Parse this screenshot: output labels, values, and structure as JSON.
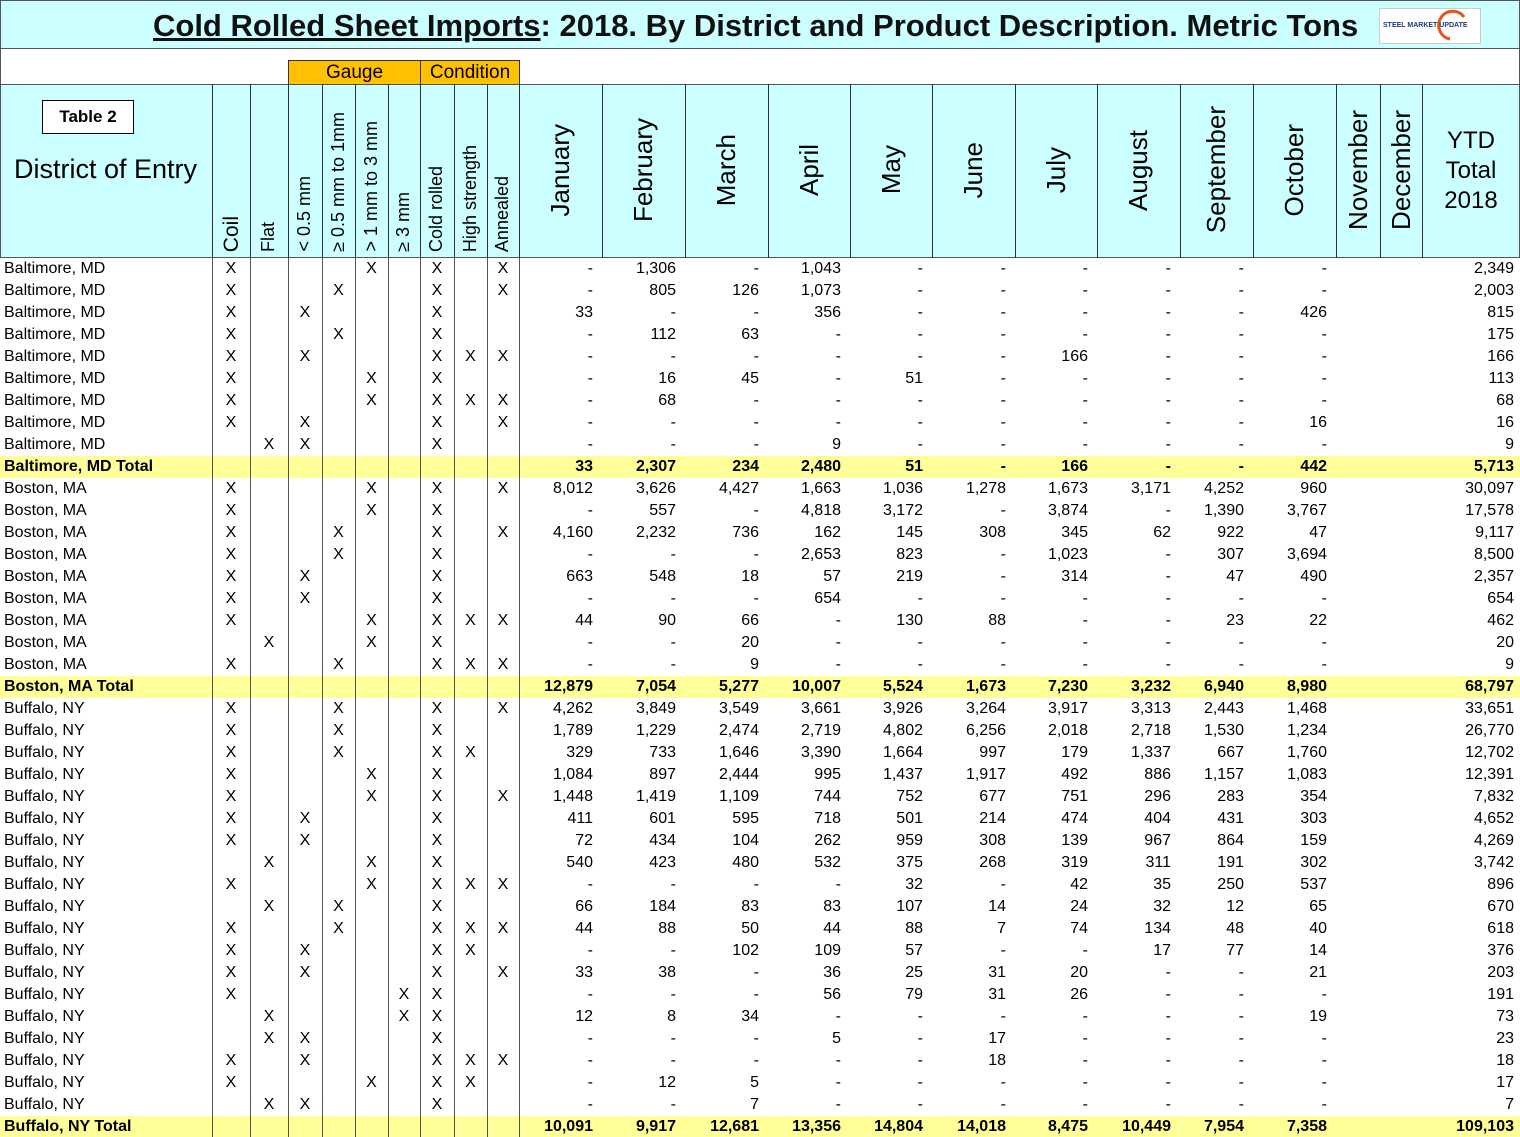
{
  "title": {
    "main": "Cold Rolled Sheet Imports",
    "rest": ": 2018. By District and Product Description. Metric Tons",
    "logo": "STEEL MARKET UPDATE"
  },
  "groups": {
    "gauge": "Gauge",
    "condition": "Condition"
  },
  "header": {
    "table_label": "Table 2",
    "district": "District of Entry",
    "attributes": [
      "Coil",
      "Flat",
      "< 0.5 mm",
      "≥ 0.5 mm to 1mm",
      "> 1 mm to 3 mm",
      "≥ 3 mm",
      "Cold rolled",
      "High strength",
      "Annealed"
    ],
    "months": [
      "January",
      "February",
      "March",
      "April",
      "May",
      "June",
      "July",
      "August",
      "September",
      "October",
      "November",
      "December"
    ],
    "ytd": [
      "YTD",
      "Total",
      "2018"
    ]
  },
  "rows": [
    {
      "district": "Baltimore, MD",
      "marks": [
        "X",
        null,
        null,
        null,
        "X",
        null,
        "X",
        null,
        "X"
      ],
      "values": [
        "-",
        "1,306",
        "-",
        "1,043",
        "-",
        "-",
        "-",
        "-",
        "-",
        "-"
      ],
      "ytd": "2,349"
    },
    {
      "district": "Baltimore, MD",
      "marks": [
        "X",
        null,
        null,
        "X",
        null,
        null,
        "X",
        null,
        "X"
      ],
      "values": [
        "-",
        "805",
        "126",
        "1,073",
        "-",
        "-",
        "-",
        "-",
        "-",
        "-"
      ],
      "ytd": "2,003"
    },
    {
      "district": "Baltimore, MD",
      "marks": [
        "X",
        null,
        "X",
        null,
        null,
        null,
        "X",
        null,
        null
      ],
      "values": [
        "33",
        "-",
        "-",
        "356",
        "-",
        "-",
        "-",
        "-",
        "-",
        "426"
      ],
      "ytd": "815"
    },
    {
      "district": "Baltimore, MD",
      "marks": [
        "X",
        null,
        null,
        "X",
        null,
        null,
        "X",
        null,
        null
      ],
      "values": [
        "-",
        "112",
        "63",
        "-",
        "-",
        "-",
        "-",
        "-",
        "-",
        "-"
      ],
      "ytd": "175"
    },
    {
      "district": "Baltimore, MD",
      "marks": [
        "X",
        null,
        "X",
        null,
        null,
        null,
        "X",
        "X",
        "X"
      ],
      "values": [
        "-",
        "-",
        "-",
        "-",
        "-",
        "-",
        "166",
        "-",
        "-",
        "-"
      ],
      "ytd": "166"
    },
    {
      "district": "Baltimore, MD",
      "marks": [
        "X",
        null,
        null,
        null,
        "X",
        null,
        "X",
        null,
        null
      ],
      "values": [
        "-",
        "16",
        "45",
        "-",
        "51",
        "-",
        "-",
        "-",
        "-",
        "-"
      ],
      "ytd": "113"
    },
    {
      "district": "Baltimore, MD",
      "marks": [
        "X",
        null,
        null,
        null,
        "X",
        null,
        "X",
        "X",
        "X"
      ],
      "values": [
        "-",
        "68",
        "-",
        "-",
        "-",
        "-",
        "-",
        "-",
        "-",
        "-"
      ],
      "ytd": "68"
    },
    {
      "district": "Baltimore, MD",
      "marks": [
        "X",
        null,
        "X",
        null,
        null,
        null,
        "X",
        null,
        "X"
      ],
      "values": [
        "-",
        "-",
        "-",
        "-",
        "-",
        "-",
        "-",
        "-",
        "-",
        "16"
      ],
      "ytd": "16"
    },
    {
      "district": "Baltimore, MD",
      "marks": [
        null,
        "X",
        "X",
        null,
        null,
        null,
        "X",
        null,
        null
      ],
      "values": [
        "-",
        "-",
        "-",
        "9",
        "-",
        "-",
        "-",
        "-",
        "-",
        "-"
      ],
      "ytd": "9"
    },
    {
      "district": "Baltimore, MD Total",
      "values": [
        "33",
        "2,307",
        "234",
        "2,480",
        "51",
        "-",
        "166",
        "-",
        "-",
        "442"
      ],
      "ytd": "5,713"
    },
    {
      "district": "Boston, MA",
      "marks": [
        "X",
        null,
        null,
        null,
        "X",
        null,
        "X",
        null,
        "X"
      ],
      "values": [
        "8,012",
        "3,626",
        "4,427",
        "1,663",
        "1,036",
        "1,278",
        "1,673",
        "3,171",
        "4,252",
        "960"
      ],
      "ytd": "30,097"
    },
    {
      "district": "Boston, MA",
      "marks": [
        "X",
        null,
        null,
        null,
        "X",
        null,
        "X",
        null,
        null
      ],
      "values": [
        "-",
        "557",
        "-",
        "4,818",
        "3,172",
        "-",
        "3,874",
        "-",
        "1,390",
        "3,767"
      ],
      "ytd": "17,578"
    },
    {
      "district": "Boston, MA",
      "marks": [
        "X",
        null,
        null,
        "X",
        null,
        null,
        "X",
        null,
        "X"
      ],
      "values": [
        "4,160",
        "2,232",
        "736",
        "162",
        "145",
        "308",
        "345",
        "62",
        "922",
        "47"
      ],
      "ytd": "9,117"
    },
    {
      "district": "Boston, MA",
      "marks": [
        "X",
        null,
        null,
        "X",
        null,
        null,
        "X",
        null,
        null
      ],
      "values": [
        "-",
        "-",
        "-",
        "2,653",
        "823",
        "-",
        "1,023",
        "-",
        "307",
        "3,694"
      ],
      "ytd": "8,500"
    },
    {
      "district": "Boston, MA",
      "marks": [
        "X",
        null,
        "X",
        null,
        null,
        null,
        "X",
        null,
        null
      ],
      "values": [
        "663",
        "548",
        "18",
        "57",
        "219",
        "-",
        "314",
        "-",
        "47",
        "490"
      ],
      "ytd": "2,357"
    },
    {
      "district": "Boston, MA",
      "marks": [
        "X",
        null,
        "X",
        null,
        null,
        null,
        "X",
        null,
        null
      ],
      "values": [
        "-",
        "-",
        "-",
        "654",
        "-",
        "-",
        "-",
        "-",
        "-",
        "-"
      ],
      "ytd": "654"
    },
    {
      "district": "Boston, MA",
      "marks": [
        "X",
        null,
        null,
        null,
        "X",
        null,
        "X",
        "X",
        "X"
      ],
      "values": [
        "44",
        "90",
        "66",
        "-",
        "130",
        "88",
        "-",
        "-",
        "23",
        "22"
      ],
      "ytd": "462"
    },
    {
      "district": "Boston, MA",
      "marks": [
        null,
        "X",
        null,
        null,
        "X",
        null,
        "X",
        null,
        null
      ],
      "values": [
        "-",
        "-",
        "20",
        "-",
        "-",
        "-",
        "-",
        "-",
        "-",
        "-"
      ],
      "ytd": "20"
    },
    {
      "district": "Boston, MA",
      "marks": [
        "X",
        null,
        null,
        "X",
        null,
        null,
        "X",
        "X",
        "X"
      ],
      "values": [
        "-",
        "-",
        "9",
        "-",
        "-",
        "-",
        "-",
        "-",
        "-",
        "-"
      ],
      "ytd": "9"
    },
    {
      "district": "Boston, MA Total",
      "values": [
        "12,879",
        "7,054",
        "5,277",
        "10,007",
        "5,524",
        "1,673",
        "7,230",
        "3,232",
        "6,940",
        "8,980"
      ],
      "ytd": "68,797"
    },
    {
      "district": "Buffalo, NY",
      "marks": [
        "X",
        null,
        null,
        "X",
        null,
        null,
        "X",
        null,
        "X"
      ],
      "values": [
        "4,262",
        "3,849",
        "3,549",
        "3,661",
        "3,926",
        "3,264",
        "3,917",
        "3,313",
        "2,443",
        "1,468"
      ],
      "ytd": "33,651"
    },
    {
      "district": "Buffalo, NY",
      "marks": [
        "X",
        null,
        null,
        "X",
        null,
        null,
        "X",
        null,
        null
      ],
      "values": [
        "1,789",
        "1,229",
        "2,474",
        "2,719",
        "4,802",
        "6,256",
        "2,018",
        "2,718",
        "1,530",
        "1,234"
      ],
      "ytd": "26,770"
    },
    {
      "district": "Buffalo, NY",
      "marks": [
        "X",
        null,
        null,
        "X",
        null,
        null,
        "X",
        "X",
        null
      ],
      "values": [
        "329",
        "733",
        "1,646",
        "3,390",
        "1,664",
        "997",
        "179",
        "1,337",
        "667",
        "1,760"
      ],
      "ytd": "12,702"
    },
    {
      "district": "Buffalo, NY",
      "marks": [
        "X",
        null,
        null,
        null,
        "X",
        null,
        "X",
        null,
        null
      ],
      "values": [
        "1,084",
        "897",
        "2,444",
        "995",
        "1,437",
        "1,917",
        "492",
        "886",
        "1,157",
        "1,083"
      ],
      "ytd": "12,391"
    },
    {
      "district": "Buffalo, NY",
      "marks": [
        "X",
        null,
        null,
        null,
        "X",
        null,
        "X",
        null,
        "X"
      ],
      "values": [
        "1,448",
        "1,419",
        "1,109",
        "744",
        "752",
        "677",
        "751",
        "296",
        "283",
        "354"
      ],
      "ytd": "7,832"
    },
    {
      "district": "Buffalo, NY",
      "marks": [
        "X",
        null,
        "X",
        null,
        null,
        null,
        "X",
        null,
        null
      ],
      "values": [
        "411",
        "601",
        "595",
        "718",
        "501",
        "214",
        "474",
        "404",
        "431",
        "303"
      ],
      "ytd": "4,652"
    },
    {
      "district": "Buffalo, NY",
      "marks": [
        "X",
        null,
        "X",
        null,
        null,
        null,
        "X",
        null,
        null
      ],
      "values": [
        "72",
        "434",
        "104",
        "262",
        "959",
        "308",
        "139",
        "967",
        "864",
        "159"
      ],
      "ytd": "4,269"
    },
    {
      "district": "Buffalo, NY",
      "marks": [
        null,
        "X",
        null,
        null,
        "X",
        null,
        "X",
        null,
        null
      ],
      "values": [
        "540",
        "423",
        "480",
        "532",
        "375",
        "268",
        "319",
        "311",
        "191",
        "302"
      ],
      "ytd": "3,742"
    },
    {
      "district": "Buffalo, NY",
      "marks": [
        "X",
        null,
        null,
        null,
        "X",
        null,
        "X",
        "X",
        "X"
      ],
      "values": [
        "-",
        "-",
        "-",
        "-",
        "32",
        "-",
        "42",
        "35",
        "250",
        "537"
      ],
      "ytd": "896"
    },
    {
      "district": "Buffalo, NY",
      "marks": [
        null,
        "X",
        null,
        "X",
        null,
        null,
        "X",
        null,
        null
      ],
      "values": [
        "66",
        "184",
        "83",
        "83",
        "107",
        "14",
        "24",
        "32",
        "12",
        "65"
      ],
      "ytd": "670"
    },
    {
      "district": "Buffalo, NY",
      "marks": [
        "X",
        null,
        null,
        "X",
        null,
        null,
        "X",
        "X",
        "X"
      ],
      "values": [
        "44",
        "88",
        "50",
        "44",
        "88",
        "7",
        "74",
        "134",
        "48",
        "40"
      ],
      "ytd": "618"
    },
    {
      "district": "Buffalo, NY",
      "marks": [
        "X",
        null,
        "X",
        null,
        null,
        null,
        "X",
        "X",
        null
      ],
      "values": [
        "-",
        "-",
        "102",
        "109",
        "57",
        "-",
        "-",
        "17",
        "77",
        "14"
      ],
      "ytd": "376"
    },
    {
      "district": "Buffalo, NY",
      "marks": [
        "X",
        null,
        "X",
        null,
        null,
        null,
        "X",
        null,
        "X"
      ],
      "values": [
        "33",
        "38",
        "-",
        "36",
        "25",
        "31",
        "20",
        "-",
        "-",
        "21"
      ],
      "ytd": "203"
    },
    {
      "district": "Buffalo, NY",
      "marks": [
        "X",
        null,
        null,
        null,
        null,
        "X",
        "X",
        null,
        null
      ],
      "values": [
        "-",
        "-",
        "-",
        "56",
        "79",
        "31",
        "26",
        "-",
        "-",
        "-"
      ],
      "ytd": "191"
    },
    {
      "district": "Buffalo, NY",
      "marks": [
        null,
        "X",
        null,
        null,
        null,
        "X",
        "X",
        null,
        null
      ],
      "values": [
        "12",
        "8",
        "34",
        "-",
        "-",
        "-",
        "-",
        "-",
        "-",
        "19"
      ],
      "ytd": "73"
    },
    {
      "district": "Buffalo, NY",
      "marks": [
        null,
        "X",
        "X",
        null,
        null,
        null,
        "X",
        null,
        null
      ],
      "values": [
        "-",
        "-",
        "-",
        "5",
        "-",
        "17",
        "-",
        "-",
        "-",
        "-"
      ],
      "ytd": "23"
    },
    {
      "district": "Buffalo, NY",
      "marks": [
        "X",
        null,
        "X",
        null,
        null,
        null,
        "X",
        "X",
        "X"
      ],
      "values": [
        "-",
        "-",
        "-",
        "-",
        "-",
        "18",
        "-",
        "-",
        "-",
        "-"
      ],
      "ytd": "18"
    },
    {
      "district": "Buffalo, NY",
      "marks": [
        "X",
        null,
        null,
        null,
        "X",
        null,
        "X",
        "X",
        null
      ],
      "values": [
        "-",
        "12",
        "5",
        "-",
        "-",
        "-",
        "-",
        "-",
        "-",
        "-"
      ],
      "ytd": "17"
    },
    {
      "district": "Buffalo, NY",
      "marks": [
        null,
        "X",
        "X",
        null,
        null,
        null,
        "X",
        null,
        null
      ],
      "values": [
        "-",
        "-",
        "7",
        "-",
        "-",
        "-",
        "-",
        "-",
        "-",
        "-"
      ],
      "ytd": "7"
    },
    {
      "district": "Buffalo, NY Total",
      "values": [
        "10,091",
        "9,917",
        "12,681",
        "13,356",
        "14,804",
        "14,018",
        "8,475",
        "10,449",
        "7,954",
        "7,358"
      ],
      "ytd": "109,103"
    }
  ]
}
